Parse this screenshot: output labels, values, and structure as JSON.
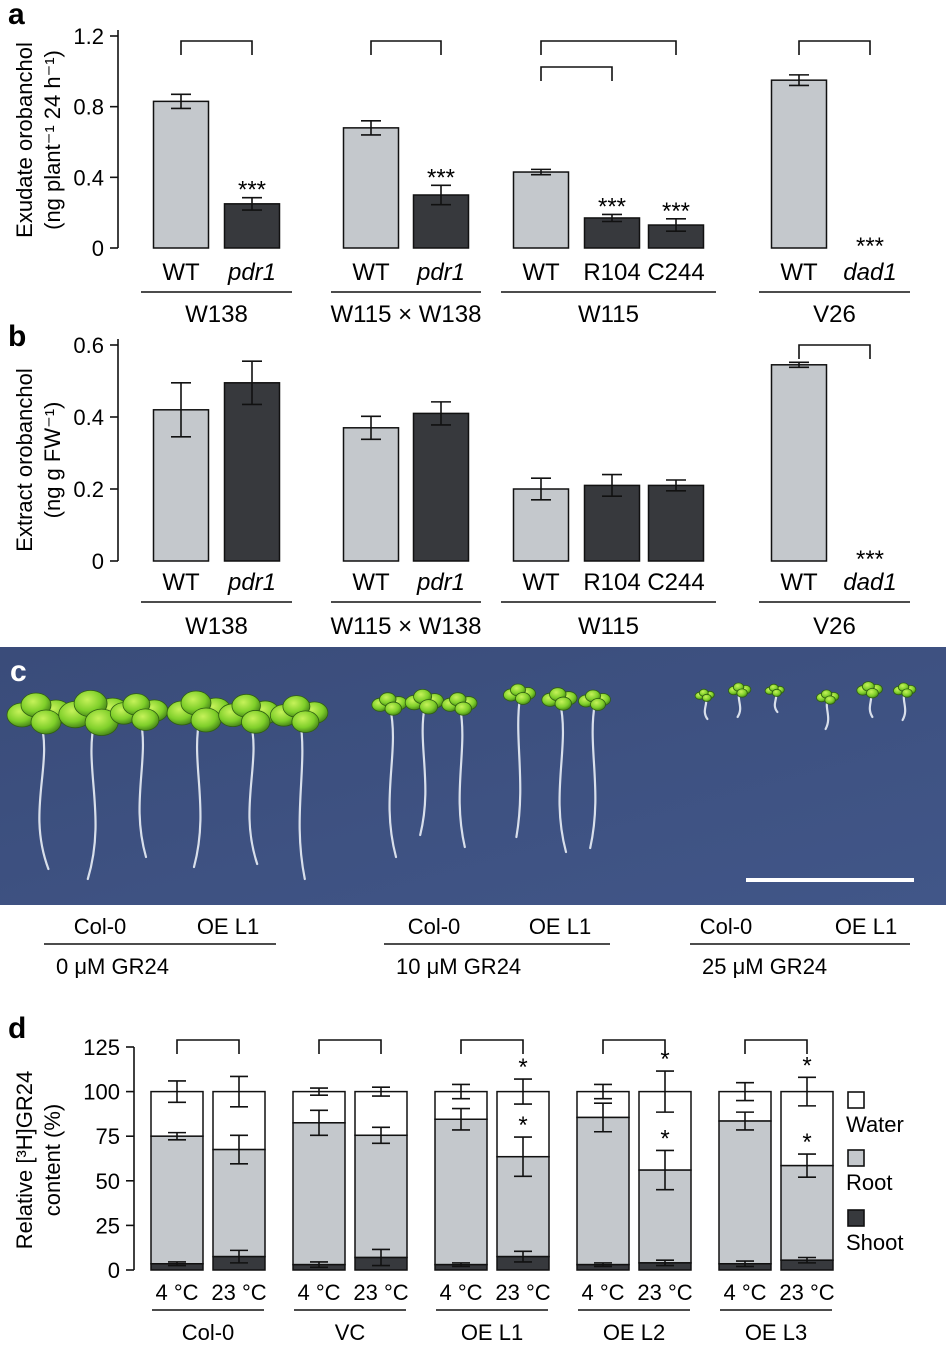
{
  "panels": {
    "a": {
      "letter": "a",
      "ylabel_line1": "Exudate orobanchol",
      "ylabel_line2": "(ng plant⁻¹ 24 h⁻¹)",
      "ylim": [
        0,
        1.2
      ],
      "yticks": [
        "0",
        "0.4",
        "0.8",
        "1.2"
      ]
    },
    "b": {
      "letter": "b",
      "ylabel_line1": "Extract orobanchol",
      "ylabel_line2": "(ng g FW⁻¹)",
      "ylim": [
        0,
        0.6
      ],
      "yticks": [
        "0",
        "0.2",
        "0.4",
        "0.6"
      ]
    },
    "c": {
      "letter": "c",
      "groups": [
        {
          "labels": [
            "Col-0",
            "OE L1"
          ],
          "treatment": "0 μM GR24"
        },
        {
          "labels": [
            "Col-0",
            "OE L1"
          ],
          "treatment": "10 μM GR24"
        },
        {
          "labels": [
            "Col-0",
            "OE L1"
          ],
          "treatment": "25 μM GR24"
        }
      ]
    },
    "d": {
      "letter": "d",
      "ylabel_line1": "Relative [³H]GR24",
      "ylabel_line2": "content (%)",
      "yticks": [
        "0",
        "25",
        "50",
        "75",
        "100",
        "125"
      ],
      "legend": [
        "Water",
        "Root",
        "Shoot"
      ]
    }
  },
  "chart_data": [
    {
      "type": "bar",
      "panel": "a",
      "ylim": [
        0,
        1.2
      ],
      "groups": [
        {
          "name": "W138",
          "bars": [
            {
              "label": "WT",
              "italic": false,
              "value": 0.83,
              "err": 0.04,
              "fill": "light",
              "sig": ""
            },
            {
              "label": "pdr1",
              "italic": true,
              "value": 0.25,
              "err": 0.035,
              "fill": "dark",
              "sig": "***"
            }
          ]
        },
        {
          "name": "W115 × W138",
          "bars": [
            {
              "label": "WT",
              "italic": false,
              "value": 0.68,
              "err": 0.04,
              "fill": "light",
              "sig": ""
            },
            {
              "label": "pdr1",
              "italic": true,
              "value": 0.3,
              "err": 0.055,
              "fill": "dark",
              "sig": "***"
            }
          ]
        },
        {
          "name": "W115",
          "bars": [
            {
              "label": "WT",
              "italic": false,
              "value": 0.43,
              "err": 0.015,
              "fill": "light",
              "sig": ""
            },
            {
              "label": "R104",
              "italic": false,
              "value": 0.17,
              "err": 0.02,
              "fill": "dark",
              "sig": "***"
            },
            {
              "label": "C244",
              "italic": false,
              "value": 0.13,
              "err": 0.035,
              "fill": "dark",
              "sig": "***"
            }
          ]
        },
        {
          "name": "V26",
          "bars": [
            {
              "label": "WT",
              "italic": false,
              "value": 0.95,
              "err": 0.03,
              "fill": "light",
              "sig": ""
            },
            {
              "label": "dad1",
              "italic": true,
              "value": 0,
              "err": 0,
              "fill": "dark",
              "sig": "***"
            }
          ]
        }
      ]
    },
    {
      "type": "bar",
      "panel": "b",
      "ylim": [
        0,
        0.6
      ],
      "groups": [
        {
          "name": "W138",
          "bars": [
            {
              "label": "WT",
              "italic": false,
              "value": 0.42,
              "err": 0.075,
              "fill": "light",
              "sig": ""
            },
            {
              "label": "pdr1",
              "italic": true,
              "value": 0.495,
              "err": 0.06,
              "fill": "dark",
              "sig": ""
            }
          ]
        },
        {
          "name": "W115 × W138",
          "bars": [
            {
              "label": "WT",
              "italic": false,
              "value": 0.37,
              "err": 0.032,
              "fill": "light",
              "sig": ""
            },
            {
              "label": "pdr1",
              "italic": true,
              "value": 0.41,
              "err": 0.032,
              "fill": "dark",
              "sig": ""
            }
          ]
        },
        {
          "name": "W115",
          "bars": [
            {
              "label": "WT",
              "italic": false,
              "value": 0.2,
              "err": 0.03,
              "fill": "light",
              "sig": ""
            },
            {
              "label": "R104",
              "italic": false,
              "value": 0.21,
              "err": 0.03,
              "fill": "dark",
              "sig": ""
            },
            {
              "label": "C244",
              "italic": false,
              "value": 0.21,
              "err": 0.015,
              "fill": "dark",
              "sig": ""
            }
          ]
        },
        {
          "name": "V26",
          "bars": [
            {
              "label": "WT",
              "italic": false,
              "value": 0.545,
              "err": 0.007,
              "fill": "light",
              "sig": ""
            },
            {
              "label": "dad1",
              "italic": true,
              "value": 0,
              "err": 0,
              "fill": "dark",
              "sig": "***"
            }
          ]
        }
      ]
    },
    {
      "type": "bar",
      "panel": "d",
      "stacked": true,
      "ylim": [
        0,
        125
      ],
      "series": [
        "Shoot",
        "Root",
        "Water"
      ],
      "groups": [
        {
          "name": "Col-0",
          "bars": [
            {
              "label": "4 °C",
              "shoot": 3.5,
              "shoot_err": 1,
              "root_top": 75,
              "root_err": 2,
              "total": 100,
              "total_err": 6,
              "sig_total": "",
              "sig_root": ""
            },
            {
              "label": "23 °C",
              "shoot": 7.5,
              "shoot_err": 3.5,
              "root_top": 67.5,
              "root_err": 8,
              "total": 100,
              "total_err": 8.5,
              "sig_total": "",
              "sig_root": ""
            }
          ]
        },
        {
          "name": "VC",
          "bars": [
            {
              "label": "4 °C",
              "shoot": 3,
              "shoot_err": 1.5,
              "root_top": 82.5,
              "root_err": 7,
              "total": 100,
              "total_err": 2,
              "sig_total": "",
              "sig_root": ""
            },
            {
              "label": "23 °C",
              "shoot": 7,
              "shoot_err": 4.5,
              "root_top": 75.5,
              "root_err": 4.5,
              "total": 100,
              "total_err": 2.5,
              "sig_total": "",
              "sig_root": ""
            }
          ]
        },
        {
          "name": "OE L1",
          "bars": [
            {
              "label": "4 °C",
              "shoot": 3,
              "shoot_err": 1,
              "root_top": 84.5,
              "root_err": 6,
              "total": 100,
              "total_err": 4,
              "sig_total": "",
              "sig_root": ""
            },
            {
              "label": "23 °C",
              "shoot": 7.5,
              "shoot_err": 3,
              "root_top": 63.5,
              "root_err": 11,
              "total": 100,
              "total_err": 7,
              "sig_total": "*",
              "sig_root": "*"
            }
          ]
        },
        {
          "name": "OE L2",
          "bars": [
            {
              "label": "4 °C",
              "shoot": 3,
              "shoot_err": 1,
              "root_top": 85.5,
              "root_err": 8,
              "total": 100,
              "total_err": 4,
              "sig_total": "",
              "sig_root": ""
            },
            {
              "label": "23 °C",
              "shoot": 4,
              "shoot_err": 1.5,
              "root_top": 56,
              "root_err": 11,
              "total": 100,
              "total_err": 11.5,
              "sig_total": "*",
              "sig_root": "*"
            }
          ]
        },
        {
          "name": "OE L3",
          "bars": [
            {
              "label": "4 °C",
              "shoot": 3.5,
              "shoot_err": 1.5,
              "root_top": 83.5,
              "root_err": 5,
              "total": 100,
              "total_err": 5,
              "sig_total": "",
              "sig_root": ""
            },
            {
              "label": "23 °C",
              "shoot": 5.5,
              "shoot_err": 1.5,
              "root_top": 58.5,
              "root_err": 6.5,
              "total": 100,
              "total_err": 8,
              "sig_total": "*",
              "sig_root": "*"
            }
          ]
        }
      ]
    }
  ],
  "colors": {
    "light_bar": "#c4c8cc",
    "dark_bar": "#37393d",
    "white_bar": "#ffffff",
    "photo_bg": "#3c4f7e",
    "seedling_green": "#7fcf2a",
    "root_white": "#e9eef6"
  }
}
